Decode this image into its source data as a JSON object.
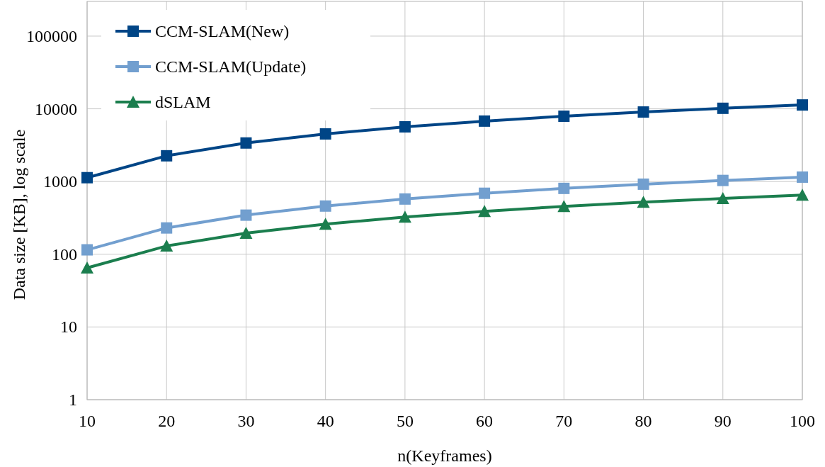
{
  "chart_data": {
    "type": "line",
    "xlabel": "n(Keyframes)",
    "ylabel": "Data size [KB], log scale",
    "x": [
      10,
      20,
      30,
      40,
      50,
      60,
      70,
      80,
      90,
      100
    ],
    "xlim": [
      10,
      100
    ],
    "xticks": [
      10,
      20,
      30,
      40,
      50,
      60,
      70,
      80,
      90,
      100
    ],
    "ylim": [
      1,
      300000
    ],
    "yticks": [
      1,
      10,
      100,
      1000,
      10000,
      100000
    ],
    "log": "y",
    "grid": true,
    "legend": "top left",
    "line_style": "solid",
    "series": [
      {
        "name": "CCM-SLAM(New)",
        "color": "#004586",
        "marker": "square",
        "values": [
          1130,
          2260,
          3390,
          4520,
          5650,
          6780,
          7910,
          9040,
          10170,
          11300
        ]
      },
      {
        "name": "CCM-SLAM(Update)",
        "color": "#729fcf",
        "marker": "square",
        "values": [
          115,
          230,
          345,
          460,
          575,
          690,
          805,
          920,
          1035,
          1150
        ]
      },
      {
        "name": "dSLAM",
        "color": "#1b7e4e",
        "marker": "triangle",
        "values": [
          65,
          130,
          195,
          260,
          325,
          390,
          455,
          520,
          585,
          650
        ]
      }
    ]
  }
}
